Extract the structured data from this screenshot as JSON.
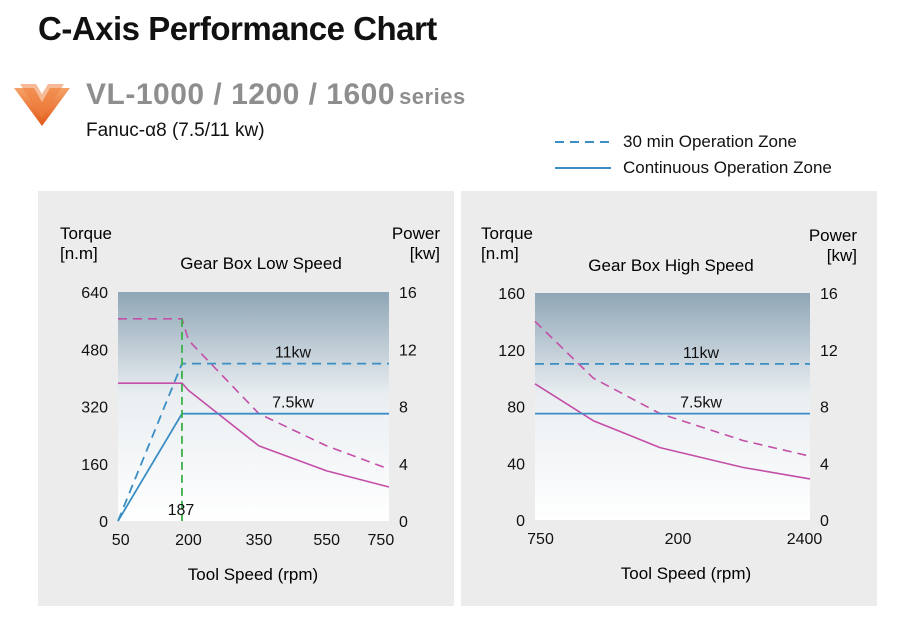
{
  "header": {
    "title": "C-Axis Performance Chart",
    "series_name": "VL-1000 / 1200 / 1600",
    "series_suffix": "series",
    "motor": "Fanuc-α8 (7.5/11 kw)"
  },
  "legend": {
    "items": [
      {
        "label": "30 min Operation Zone",
        "style": "dashed"
      },
      {
        "label": "Continuous Operation Zone",
        "style": "solid"
      }
    ]
  },
  "colors": {
    "title_gray": "#8e8e8e",
    "arrow_orange": "#e8671e",
    "torque_magenta": "#c44fa8",
    "power_blue": "#3a8ec4",
    "marker_green": "#3cb04a",
    "panel_bg": "#ececec"
  },
  "chart_data": [
    {
      "type": "line",
      "title": "Gear Box Low Speed",
      "xlabel": "Tool Speed (rpm)",
      "ylabel_left": "Torque",
      "ylabel_left_unit": "[n.m]",
      "ylabel_right": "Power",
      "ylabel_right_unit": "[kw]",
      "x_ticks": [
        "50",
        "200",
        "350",
        "550",
        "750"
      ],
      "y_left_ticks": [
        0,
        160,
        320,
        480,
        640
      ],
      "y_right_ticks": [
        0,
        4,
        8,
        12,
        16
      ],
      "ylim_left": [
        0,
        640
      ],
      "ylim_right": [
        0,
        16
      ],
      "annotations": {
        "knee_label": "187",
        "power_labels": [
          "11kw",
          "7.5kw"
        ]
      },
      "series": [
        {
          "name": "30 min Operation Zone",
          "quantity": "torque",
          "style": "dashed",
          "points": [
            [
              50,
              565
            ],
            [
              187,
              565
            ],
            [
              200,
              505
            ],
            [
              350,
              300
            ],
            [
              550,
              210
            ],
            [
              750,
              145
            ]
          ]
        },
        {
          "name": "Continuous Operation Zone",
          "quantity": "torque",
          "style": "solid",
          "points": [
            [
              50,
              385
            ],
            [
              187,
              385
            ],
            [
              200,
              365
            ],
            [
              350,
              210
            ],
            [
              550,
              140
            ],
            [
              750,
              95
            ]
          ]
        },
        {
          "name": "30 min Operation Zone",
          "quantity": "power",
          "style": "dashed",
          "points": [
            [
              50,
              0
            ],
            [
              187,
              11
            ],
            [
              750,
              11
            ]
          ]
        },
        {
          "name": "Continuous Operation Zone",
          "quantity": "power",
          "style": "solid",
          "points": [
            [
              50,
              0
            ],
            [
              187,
              7.5
            ],
            [
              750,
              7.5
            ]
          ]
        }
      ]
    },
    {
      "type": "line",
      "title": "Gear Box High Speed",
      "xlabel": "Tool Speed (rpm)",
      "ylabel_left": "Torque",
      "ylabel_left_unit": "[n.m]",
      "ylabel_right": "Power",
      "ylabel_right_unit": "[kw]",
      "x_ticks": [
        "750",
        "200",
        "2400"
      ],
      "y_left_ticks": [
        0,
        40,
        80,
        120,
        160
      ],
      "y_right_ticks": [
        0,
        4,
        8,
        12,
        16
      ],
      "ylim_left": [
        0,
        160
      ],
      "ylim_right": [
        0,
        16
      ],
      "annotations": {
        "power_labels": [
          "11kw",
          "7.5kw"
        ]
      },
      "series": [
        {
          "name": "30 min Operation Zone",
          "quantity": "torque",
          "style": "dashed",
          "points": [
            [
              750,
              140
            ],
            [
              1100,
              100
            ],
            [
              1500,
              75
            ],
            [
              2000,
              56
            ],
            [
              2400,
              45
            ]
          ]
        },
        {
          "name": "Continuous Operation Zone",
          "quantity": "torque",
          "style": "solid",
          "points": [
            [
              750,
              96
            ],
            [
              1100,
              70
            ],
            [
              1500,
              51
            ],
            [
              2000,
              37
            ],
            [
              2400,
              29
            ]
          ]
        },
        {
          "name": "30 min Operation Zone",
          "quantity": "power",
          "style": "dashed",
          "points": [
            [
              750,
              11
            ],
            [
              2400,
              11
            ]
          ]
        },
        {
          "name": "Continuous Operation Zone",
          "quantity": "power",
          "style": "solid",
          "points": [
            [
              750,
              7.5
            ],
            [
              2400,
              7.5
            ]
          ]
        }
      ]
    }
  ]
}
